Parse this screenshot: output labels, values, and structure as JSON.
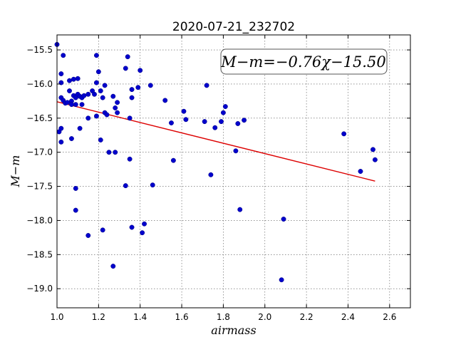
{
  "chart_data": {
    "type": "scatter",
    "title": "2020-07-21_232702",
    "xlabel": "airmass",
    "ylabel": "M−m",
    "xlim": [
      1.0,
      2.7
    ],
    "ylim": [
      -19.28,
      -15.28
    ],
    "y_inverted": true,
    "grid": true,
    "xticks": [
      1.0,
      1.2,
      1.4,
      1.6,
      1.8,
      2.0,
      2.2,
      2.4,
      2.6
    ],
    "xtick_labels": [
      "1.0",
      "1.2",
      "1.4",
      "1.6",
      "1.8",
      "2.0",
      "2.2",
      "2.4",
      "2.6"
    ],
    "yticks": [
      -15.5,
      -16.0,
      -16.5,
      -17.0,
      -17.5,
      -18.0,
      -18.5,
      -19.0
    ],
    "ytick_labels": [
      "−15.5",
      "−16.0",
      "−16.5",
      "−17.0",
      "−17.5",
      "−18.0",
      "−18.5",
      "−19.0"
    ],
    "annotation": "M−m=−0.76χ−15.50",
    "fit": {
      "slope": -0.76,
      "intercept": -15.5,
      "x_range": [
        1.0,
        2.53
      ]
    },
    "series": [
      {
        "points": [
          [
            1.0,
            -15.42
          ],
          [
            1.02,
            -15.85
          ],
          [
            1.03,
            -15.58
          ],
          [
            1.02,
            -15.98
          ],
          [
            1.02,
            -16.2
          ],
          [
            1.03,
            -16.24
          ],
          [
            1.04,
            -16.28
          ],
          [
            1.05,
            -16.27
          ],
          [
            1.06,
            -15.95
          ],
          [
            1.06,
            -16.1
          ],
          [
            1.07,
            -16.25
          ],
          [
            1.07,
            -16.3
          ],
          [
            1.08,
            -15.93
          ],
          [
            1.08,
            -16.17
          ],
          [
            1.09,
            -16.2
          ],
          [
            1.1,
            -15.92
          ],
          [
            1.1,
            -16.15
          ],
          [
            1.11,
            -16.18
          ],
          [
            1.12,
            -16.2
          ],
          [
            1.12,
            -16.3
          ],
          [
            1.13,
            -16.17
          ],
          [
            1.15,
            -16.15
          ],
          [
            1.17,
            -16.1
          ],
          [
            1.18,
            -16.15
          ],
          [
            1.19,
            -15.58
          ],
          [
            1.2,
            -15.82
          ],
          [
            1.21,
            -16.1
          ],
          [
            1.19,
            -15.98
          ],
          [
            1.01,
            -16.7
          ],
          [
            1.02,
            -16.65
          ],
          [
            1.02,
            -16.85
          ],
          [
            1.07,
            -16.8
          ],
          [
            1.09,
            -16.3
          ],
          [
            1.11,
            -16.65
          ],
          [
            1.15,
            -16.5
          ],
          [
            1.19,
            -16.47
          ],
          [
            1.21,
            -16.82
          ],
          [
            1.22,
            -16.2
          ],
          [
            1.23,
            -16.02
          ],
          [
            1.23,
            -16.42
          ],
          [
            1.24,
            -16.45
          ],
          [
            1.25,
            -17.0
          ],
          [
            1.27,
            -16.18
          ],
          [
            1.28,
            -16.35
          ],
          [
            1.28,
            -17.0
          ],
          [
            1.29,
            -16.27
          ],
          [
            1.29,
            -16.42
          ],
          [
            1.33,
            -15.77
          ],
          [
            1.34,
            -15.6
          ],
          [
            1.35,
            -16.5
          ],
          [
            1.36,
            -16.08
          ],
          [
            1.36,
            -16.2
          ],
          [
            1.35,
            -17.1
          ],
          [
            1.39,
            -16.05
          ],
          [
            1.4,
            -15.8
          ],
          [
            1.45,
            -16.02
          ],
          [
            1.52,
            -16.24
          ],
          [
            1.55,
            -16.57
          ],
          [
            1.61,
            -16.4
          ],
          [
            1.62,
            -16.52
          ],
          [
            1.71,
            -16.55
          ],
          [
            1.72,
            -16.02
          ],
          [
            1.76,
            -16.64
          ],
          [
            1.79,
            -16.55
          ],
          [
            1.8,
            -16.42
          ],
          [
            1.81,
            -16.33
          ],
          [
            1.86,
            -16.98
          ],
          [
            1.87,
            -16.58
          ],
          [
            1.9,
            -16.53
          ],
          [
            1.09,
            -17.53
          ],
          [
            1.09,
            -17.85
          ],
          [
            1.33,
            -17.49
          ],
          [
            1.46,
            -17.48
          ],
          [
            1.56,
            -17.12
          ],
          [
            1.74,
            -17.33
          ],
          [
            1.15,
            -18.22
          ],
          [
            1.22,
            -18.14
          ],
          [
            1.36,
            -18.1
          ],
          [
            1.42,
            -18.05
          ],
          [
            1.41,
            -18.18
          ],
          [
            1.27,
            -18.67
          ],
          [
            1.88,
            -17.84
          ],
          [
            2.09,
            -17.98
          ],
          [
            2.08,
            -18.87
          ],
          [
            2.38,
            -16.73
          ],
          [
            2.46,
            -17.28
          ],
          [
            2.52,
            -16.96
          ],
          [
            2.53,
            -17.11
          ]
        ]
      }
    ]
  }
}
